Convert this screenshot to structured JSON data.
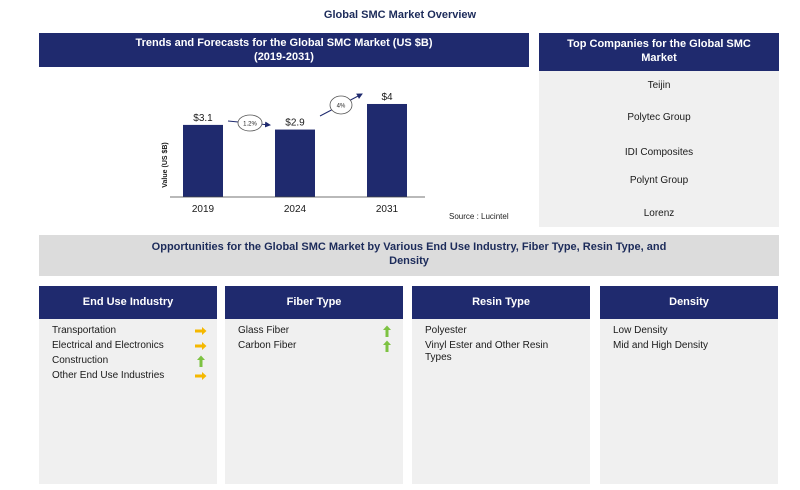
{
  "page_title": "Global SMC Market Overview",
  "trends": {
    "header_line1": "Trends and Forecasts for the Global SMC Market (US $B)",
    "header_line2": "(2019-2031)",
    "source": "Source : Lucintel"
  },
  "chart_data": {
    "type": "bar",
    "categories": [
      "2019",
      "2024",
      "2031"
    ],
    "values": [
      3.1,
      2.9,
      4
    ],
    "value_labels": [
      "$3.1",
      "$2.9",
      "$4"
    ],
    "ylabel": "Value (US $B)",
    "ylim": [
      0,
      4.3
    ],
    "growth_annotations": [
      {
        "from": "2019",
        "to": "2024",
        "label": "1.2%"
      },
      {
        "from": "2024",
        "to": "2031",
        "label": "4%"
      }
    ],
    "bar_color": "#1f2a6e",
    "grid": false
  },
  "companies": {
    "header_line1": "Top Companies for the Global SMC",
    "header_line2": "Market",
    "items": [
      "Teijin",
      "Polytec Group",
      "IDI Composites",
      "Polynt Group",
      "Lorenz"
    ]
  },
  "opportunities": {
    "line1": "Opportunities for the Global SMC Market by Various End Use Industry, Fiber Type, Resin Type, and",
    "line2": "Density"
  },
  "segments": [
    {
      "title": "End Use Industry",
      "items": [
        {
          "label": "Transportation",
          "trend": "flat"
        },
        {
          "label": "Electrical and Electronics",
          "trend": "flat"
        },
        {
          "label": "Construction",
          "trend": "up"
        },
        {
          "label": "Other End Use Industries",
          "trend": "flat"
        }
      ]
    },
    {
      "title": "Fiber Type",
      "items": [
        {
          "label": "Glass Fiber",
          "trend": "up"
        },
        {
          "label": "Carbon Fiber",
          "trend": "up"
        }
      ]
    },
    {
      "title": "Resin Type",
      "items": [
        {
          "label": "Polyester",
          "trend": ""
        },
        {
          "label": "Vinyl Ester and Other Resin Types",
          "trend": ""
        }
      ]
    },
    {
      "title": "Density",
      "items": [
        {
          "label": "Low Density",
          "trend": ""
        },
        {
          "label": "Mid and High Density",
          "trend": ""
        }
      ]
    }
  ],
  "colors": {
    "navy": "#1f2a6e",
    "flat_arrow": "#f5b800",
    "up_arrow": "#7dc242",
    "panel_gray": "#f0f0f0",
    "banner_gray": "#dcdcdc"
  }
}
